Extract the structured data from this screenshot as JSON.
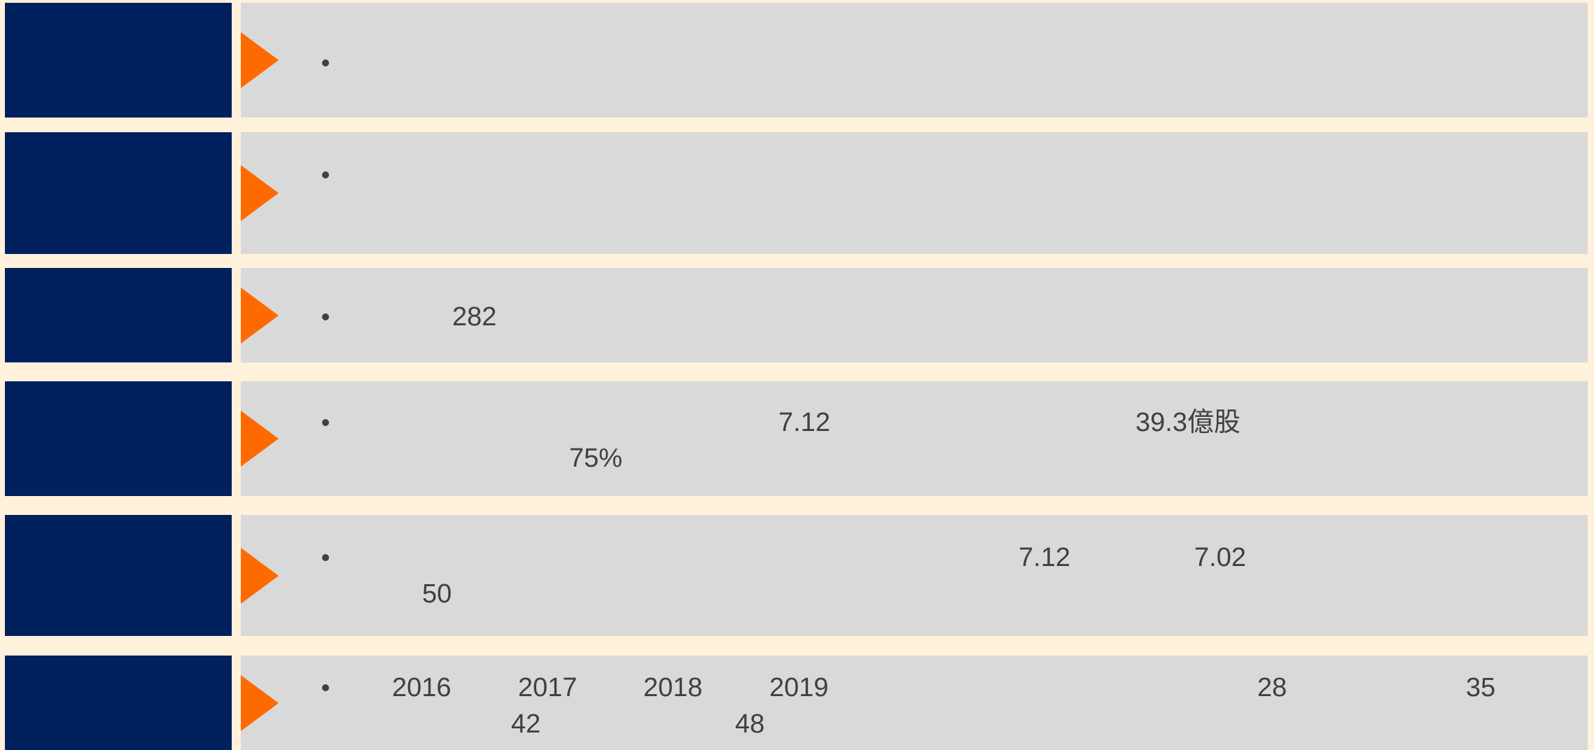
{
  "rows": [
    {
      "fragments": []
    },
    {
      "fragments": []
    },
    {
      "fragments": [
        "282"
      ]
    },
    {
      "fragments": [
        "7.12",
        "39.3億股",
        "75%"
      ]
    },
    {
      "fragments": [
        "7.12",
        "7.02",
        "50"
      ]
    },
    {
      "fragments": [
        "2016",
        "2017",
        "2018",
        "2019",
        "28",
        "35",
        "42",
        "48"
      ]
    }
  ]
}
